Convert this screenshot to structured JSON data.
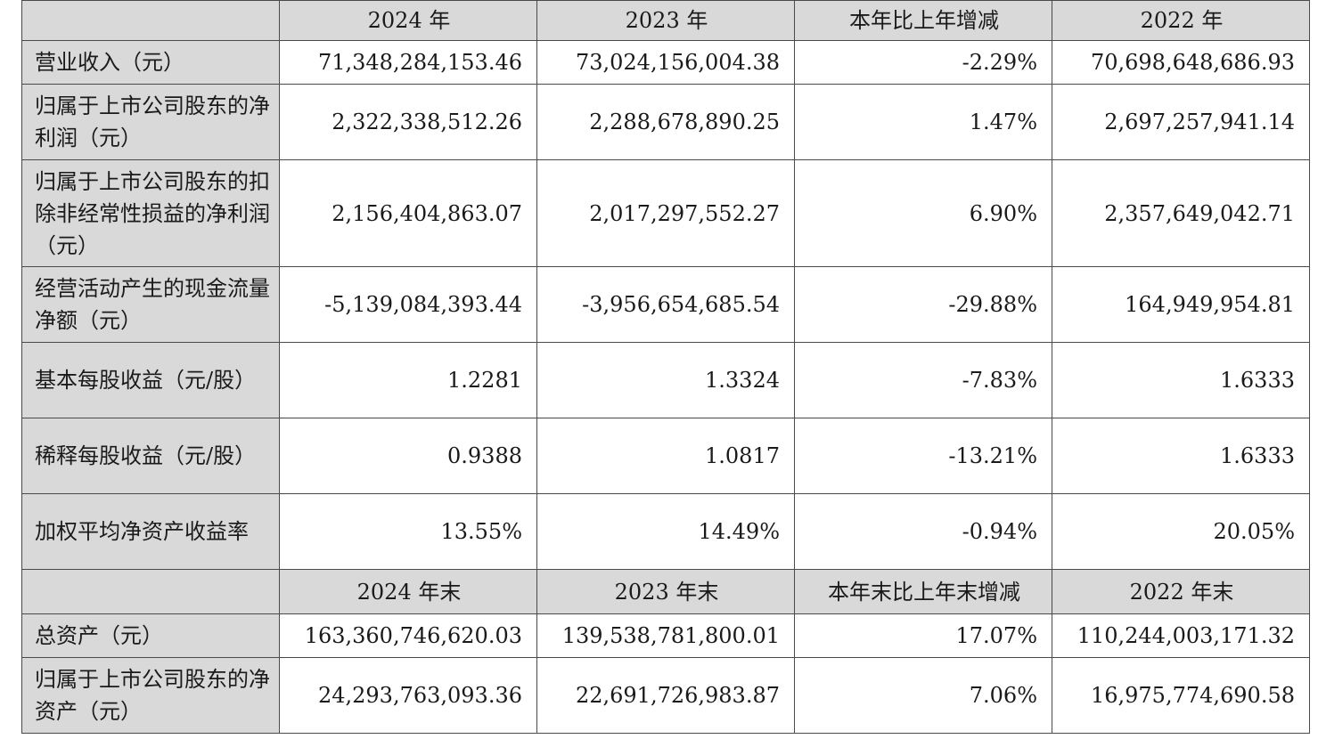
{
  "header1": [
    "",
    "2024 年",
    "2023 年",
    "本年比上年增减",
    "2022 年"
  ],
  "rows1": [
    {
      "label": "营业收入（元）",
      "values": [
        "71,348,284,153.46",
        "73,024,156,004.38",
        "-2.29%",
        "70,698,648,686.93"
      ]
    },
    {
      "label": "归属于上市公司股东的净利润（元）",
      "values": [
        "2,322,338,512.26",
        "2,288,678,890.25",
        "1.47%",
        "2,697,257,941.14"
      ]
    },
    {
      "label": "归属于上市公司股东的扣除非经常性损益的净利润（元）",
      "values": [
        "2,156,404,863.07",
        "2,017,297,552.27",
        "6.90%",
        "2,357,649,042.71"
      ]
    },
    {
      "label": "经营活动产生的现金流量净额（元）",
      "values": [
        "-5,139,084,393.44",
        "-3,956,654,685.54",
        "-29.88%",
        "164,949,954.81"
      ]
    },
    {
      "label": "基本每股收益（元/股）",
      "values": [
        "1.2281",
        "1.3324",
        "-7.83%",
        "1.6333"
      ]
    },
    {
      "label": "稀释每股收益（元/股）",
      "values": [
        "0.9388",
        "1.0817",
        "-13.21%",
        "1.6333"
      ]
    },
    {
      "label": "加权平均净资产收益率",
      "values": [
        "13.55%",
        "14.49%",
        "-0.94%",
        "20.05%"
      ]
    }
  ],
  "header2": [
    "",
    "2024 年末",
    "2023 年末",
    "本年末比上年末增减",
    "2022 年末"
  ],
  "rows2": [
    {
      "label": "总资产（元）",
      "values": [
        "163,360,746,620.03",
        "139,538,781,800.01",
        "17.07%",
        "110,244,003,171.32"
      ]
    },
    {
      "label": "归属于上市公司股东的净资产（元）",
      "values": [
        "24,293,763,093.36",
        "22,691,726,983.87",
        "7.06%",
        "16,975,774,690.58"
      ]
    }
  ]
}
